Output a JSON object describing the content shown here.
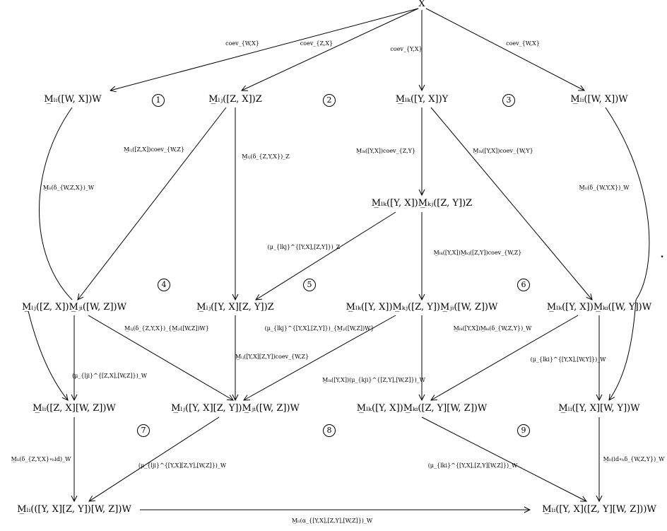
{
  "nodes": {
    "x": "X",
    "m_li_wx_w_left": "M̲ₗᵢ([W, X])W",
    "m_lj_zx_z": "M̲ₗⱼ([Z, X])Z",
    "m_lk_yx_y": "M̲ₗₖ([Y, X])Y",
    "m_li_wx_w_right": "M̲ₗᵢ([W, X])W",
    "m_lk_yx_m_kj_zy_z": "M̲ₗₖ([Y, X])M̲ₖⱼ([Z, Y])Z",
    "m_lj_zx_m_ji_wz_w": "M̲ₗⱼ([Z, X])M̲ⱼᵢ([W, Z])W",
    "m_lj_yx_zy_z": "M̲ₗⱼ([Y, X][Z, Y])Z",
    "m_lk_yx_m_kj_zy_m_ji_wz_w": "M̲ₗₖ([Y, X])M̲ₖⱼ([Z, Y])M̲ⱼᵢ([W, Z])W",
    "m_lk_yx_m_ki_wy_w": "M̲ₗₖ([Y, X])M̲ₖᵢ([W, Y])W",
    "m_li_zx_wz_w": "M̲ₗᵢ([Z, X][W, Z])W",
    "m_lj_yx_zy_m_ji_wz_w": "M̲ₗⱼ([Y, X][Z, Y])M̲ⱼᵢ([W, Z])W",
    "m_lk_yx_m_ki_zy_wz_w": "M̲ₗₖ([Y, X])M̲ₖᵢ([Z, Y][W, Z])W",
    "m_li_yx_wy_w": "M̲ₗᵢ([Y, X][W, Y])W",
    "m_li_yx_zy_wz_w": "M̲ₗᵢ(([Y, X][Z, Y])[W, Z])W",
    "m_li_yx_zy_wz_w_paren": "M̲ₗᵢ([Y, X]([Z, Y][W, Z]))W"
  },
  "labels": {
    "coev_wx_left": "coev_{W,X}",
    "coev_zx": "coev_{Z,X}",
    "coev_yx": "coev_{Y,X}",
    "coev_wx_right": "coev_{W,X}",
    "m_lj_zx_coev_wz": "M̲ₗⱼ([Z,X])coev_{W,Z}",
    "m_lj_delta_zyx_z": "M̲ₗⱼ(δ_{Z,Y,X})_Z",
    "m_lk_yx_coev_zy": "M̲ₗₖ([Y,X])coev_{Z,Y}",
    "m_lk_yx_coev_wy": "M̲ₗₖ([Y,X])coev_{W,Y}",
    "m_li_delta_wzx_w": "M̲ₗᵢ(δ_{W,Z,X})_W",
    "m_li_delta_wyx_w": "M̲ₗᵢ(δ_{W,Y,X})_W",
    "mu_lkj_z": "(μ_{lkj}^{[Y,X],[Z,Y]})_Z",
    "m_lk_yx_m_kj_zy_coev_wz": "M̲ₗₖ([Y,X])M̲ₖⱼ([Z,Y])coev_{W,Z}",
    "m_lj_delta_zyx_m_ji_wz_w": "M̲ₗⱼ(δ_{Z,Y,X})_{M̲ⱼᵢ([W,Z])W}",
    "mu_lkj_m_ji_wz_w": "(μ_{lkj}^{[Y,X],[Z,Y]})_{M̲ⱼᵢ([W,Z])W}",
    "m_lk_yx_m_ki_delta_wzy_w": "M̲ₗₖ([Y,X])M̲ₖᵢ(δ_{W,Z,Y})_W",
    "mu_lji_zx_wz_w": "(μ_{lji}^{[Z,X],[W,Z]})_W",
    "m_lj_yxzy_coev_wz": "M̲ₗⱼ([Y,X][Z,Y])coev_{W,Z}",
    "m_lk_yx_mu_kji_w": "M̲ₗₖ([Y,X])(μ_{kji}^{[Z,Y],[W,Z]})_W",
    "mu_lki_yx_wy_w": "(μ_{lki}^{[Y,X],[W,Y]})_W",
    "m_li_delta_zyx_oh_id_w": "M̲ₗᵢ(δ_{Z,Y,X}∘ₕid)_W",
    "mu_lji_yxzy_wz_w": "(μ_{lji}^{[Y,X][Z,Y],[W,Z]})_W",
    "mu_lki_yx_zywz_w": "(μ_{lki}^{[Y,X],[Z,Y][W,Z]})_W",
    "m_li_id_oh_delta_wzy_w": "M̲ₗᵢ(id∘ₕδ_{W,Z,Y})_W",
    "m_li_alpha_w": "M̲ₗᵢ(α_{[Y,X],[Z,Y],[W,Z]})_W"
  },
  "regions": [
    "1",
    "2",
    "3",
    "4",
    "5",
    "6",
    "7",
    "8",
    "9"
  ],
  "trailing_mark": "."
}
